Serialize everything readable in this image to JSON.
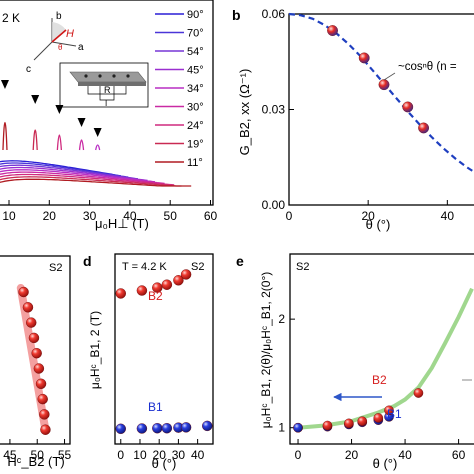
{
  "figure": {
    "panel_labels": [
      "b",
      "d",
      "e"
    ],
    "colors": {
      "red_marker": "#e0201b",
      "blue_marker": "#1a2fd0",
      "dashed_fit": "#1f3fc0",
      "green_curve": "#8fd07a",
      "pink_line": "#f08080",
      "annotation_arrow": "#2d56c8",
      "b1_label": "#1a2fd0",
      "b2_label": "#d62020"
    }
  },
  "panel_a": {
    "temperature_label": "2 K",
    "xlabel": "μ₀H⊥ (T)",
    "xticks": [
      "10",
      "20",
      "30",
      "40",
      "50",
      "60"
    ],
    "inset_axes": [
      "b",
      "H",
      "θ",
      "a",
      "c",
      "R",
      "I"
    ],
    "legend": [
      "90°",
      "70°",
      "54°",
      "45°",
      "34°",
      "30°",
      "24°",
      "19°",
      "11°"
    ],
    "legend_colors": [
      "#2a1fd6",
      "#4a35d8",
      "#7636d6",
      "#9a2fd0",
      "#b92ec4",
      "#c92aa4",
      "#cf2a7e",
      "#c92a52",
      "#b01c22"
    ]
  },
  "panel_b": {
    "label": "b",
    "ylabel": "G_B2, xx (Ω⁻¹)",
    "xlabel": "θ (°)",
    "annotation": "~cosⁿθ (n =",
    "yticks": [
      "0.00",
      "0.03",
      "0.06"
    ],
    "xticks": [
      "0",
      "20",
      "40"
    ]
  },
  "panel_c": {
    "sample": "S2",
    "xlabel": "Hᶜ_B2 (T)",
    "xticks": [
      "45",
      "50",
      "55"
    ]
  },
  "panel_d": {
    "label": "d",
    "temperature": "T = 4.2 K",
    "sample": "S2",
    "ylabel": "μ₀Hᶜ_B1, 2 (T)",
    "xlabel": "θ (°)",
    "xticks": [
      "0",
      "10",
      "20",
      "30",
      "40"
    ],
    "series_labels": [
      "B2",
      "B1"
    ]
  },
  "panel_e": {
    "label": "e",
    "sample": "S2",
    "ylabel": "μ₀Hᶜ_B1, 2(θ)/μ₀Hᶜ_B1, 2(0°)",
    "xlabel": "θ (°)",
    "xticks": [
      "0",
      "20",
      "40",
      "60"
    ],
    "yticks": [
      "1",
      "2"
    ],
    "series_labels": [
      "B2",
      "B1"
    ]
  },
  "chart_data": [
    {
      "panel": "b",
      "type": "scatter",
      "xlabel": "θ (°)",
      "ylabel": "G_B2, xx (Ω⁻¹)",
      "xlim": [
        0,
        48
      ],
      "ylim": [
        0,
        0.06
      ],
      "series": [
        {
          "values_x": [
            11,
            19,
            24,
            30,
            34
          ],
          "values": [
            0.0548,
            0.0462,
            0.0378,
            0.0308,
            0.0242
          ]
        },
        {
          "values_x": [
            0,
            3,
            6,
            9,
            12,
            15,
            18,
            21,
            24,
            27,
            30,
            33,
            36,
            39,
            42,
            45,
            48
          ],
          "values": [
            0.06,
            0.0596,
            0.0585,
            0.0565,
            0.0539,
            0.0506,
            0.0468,
            0.0425,
            0.0381,
            0.0337,
            0.0294,
            0.0253,
            0.0214,
            0.0178,
            0.0146,
            0.0118,
            0.0094
          ]
        }
      ]
    },
    {
      "panel": "d",
      "type": "scatter",
      "xlabel": "θ (°)",
      "ylabel": "μ₀Hᶜ_B1, 2 (T)",
      "xlim": [
        -3,
        48
      ],
      "ylim": [
        0,
        65
      ],
      "series": [
        {
          "name": "B2",
          "values_x": [
            0,
            11,
            19,
            24,
            30,
            34
          ],
          "values": [
            51.5,
            52.5,
            53.5,
            54.5,
            56,
            58
          ]
        },
        {
          "name": "B1",
          "values_x": [
            0,
            11,
            19,
            24,
            30,
            34,
            45
          ],
          "values": [
            5.2,
            5.3,
            5.4,
            5.4,
            5.6,
            5.7,
            6.2
          ]
        }
      ]
    },
    {
      "panel": "e",
      "type": "scatter",
      "xlabel": "θ (°)",
      "ylabel": "μ₀Hᶜ_B1, 2(θ)/μ₀Hᶜ_B1, 2(0°)",
      "xlim": [
        -3,
        68
      ],
      "ylim": [
        0.85,
        2.6
      ],
      "series": [
        {
          "name": "B2",
          "values_x": [
            0,
            11,
            19,
            24,
            30,
            34,
            45
          ],
          "values": [
            1.0,
            1.02,
            1.04,
            1.06,
            1.09,
            1.16,
            1.32
          ]
        },
        {
          "name": "B1",
          "values_x": [
            0,
            11,
            19,
            24,
            30,
            34
          ],
          "values": [
            1.0,
            1.01,
            1.03,
            1.05,
            1.07,
            1.1
          ]
        },
        {
          "values_x": [
            0,
            10,
            20,
            30,
            36,
            40,
            45,
            50,
            55,
            60,
            65
          ],
          "values": [
            1.0,
            1.02,
            1.06,
            1.14,
            1.2,
            1.26,
            1.37,
            1.55,
            1.78,
            2.02,
            2.28
          ]
        }
      ]
    },
    {
      "panel": "c",
      "type": "scatter",
      "xlabel": "Hᶜ_B2 (T)",
      "xlim": [
        43,
        56
      ],
      "series": [
        {
          "values_x": [
            47.5,
            48.3,
            48.9,
            49.4,
            49.9,
            50.3,
            50.7,
            51.0,
            51.3,
            51.5
          ],
          "values": [
            1,
            2,
            3,
            4,
            5,
            6,
            7,
            8,
            9,
            10
          ]
        }
      ]
    }
  ]
}
